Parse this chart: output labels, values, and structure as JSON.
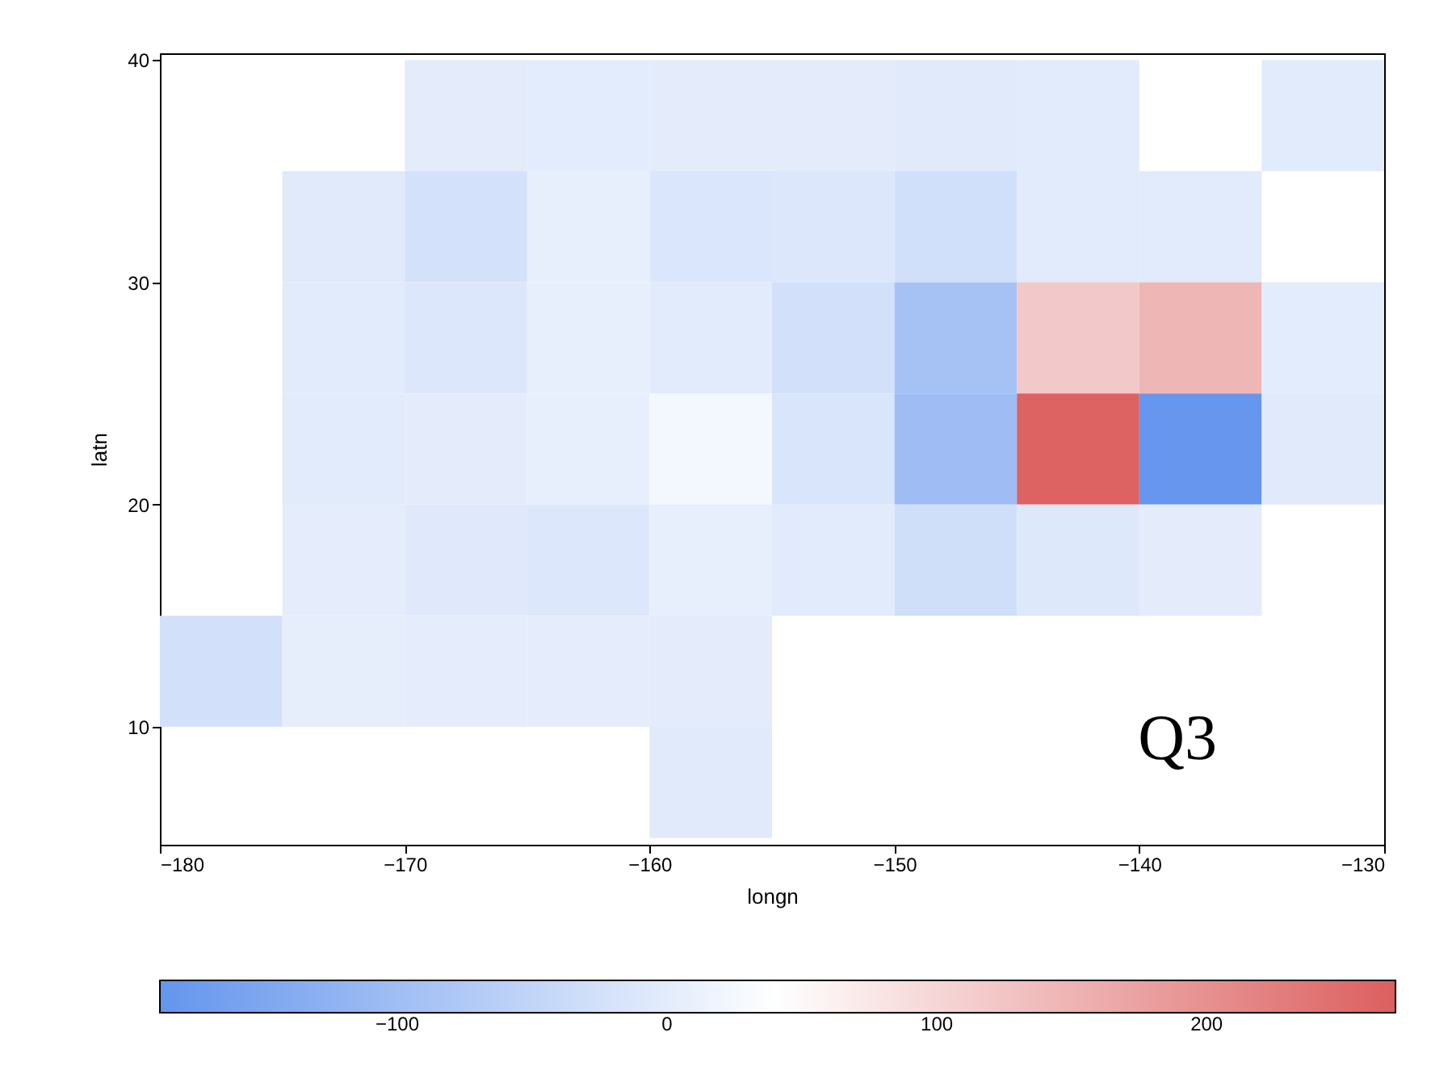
{
  "chart_data": {
    "type": "heatmap",
    "xlabel": "longn",
    "ylabel": "latn",
    "x": [
      -177.5,
      -172.5,
      -167.5,
      -162.5,
      -157.5,
      -152.5,
      -147.5,
      -142.5,
      -137.5,
      -132.5
    ],
    "y": [
      37.5,
      32.5,
      27.5,
      22.5,
      17.5,
      12.5,
      7.5
    ],
    "cells": [
      [
        null,
        null,
        1,
        0,
        1,
        1,
        -5,
        -2,
        null,
        -3
      ],
      [
        null,
        -5,
        -24,
        7,
        -14,
        -11,
        -27,
        -2,
        -3,
        null
      ],
      [
        null,
        -2,
        -11,
        7,
        -3,
        -25,
        -90,
        120,
        145,
        0
      ],
      [
        null,
        -3,
        1,
        7,
        23,
        -15,
        -101,
        265,
        -185,
        -5
      ],
      [
        null,
        3,
        -6,
        -11,
        5,
        -3,
        -30,
        -8,
        1,
        null
      ],
      [
        -25,
        4,
        3,
        3,
        1,
        null,
        null,
        null,
        null,
        null
      ],
      [
        null,
        null,
        null,
        null,
        -5,
        null,
        null,
        null,
        null,
        null
      ]
    ],
    "xlim": [
      -180,
      -130
    ],
    "xticks": [
      -180,
      -170,
      -160,
      -150,
      -140,
      -130
    ],
    "ylim": [
      4.7,
      40.3
    ],
    "yticks": [
      10,
      20,
      30,
      40
    ],
    "clim": [
      -188,
      270
    ],
    "cticks": [
      -100,
      0,
      100,
      200
    ],
    "colors": [
      "#6495ed",
      "#ffffff",
      "#dc5f5f"
    ],
    "annotations": [
      "Q3"
    ]
  }
}
